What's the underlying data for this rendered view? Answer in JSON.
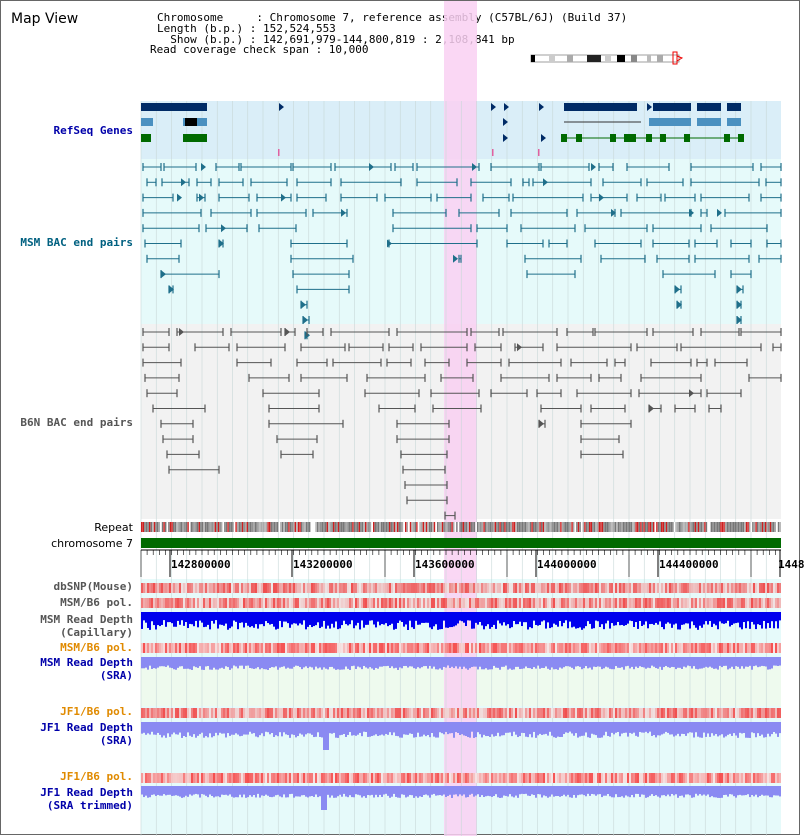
{
  "header": {
    "title": "Map View",
    "chromosome_line": "Chromosome     : Chromosome 7, reference assembly (C57BL/6J) (Build 37)",
    "length_line": "Length (b.p.) : 152,524,553",
    "show_line": "  Show (b.p.) : 142,691,979-144,800,819 : 2,108,841 bp",
    "coverage_line": "Read coverage check span : 10,000"
  },
  "tracks": {
    "refseq": "RefSeq Genes",
    "msm_bac": "MSM BAC end pairs",
    "b6n_bac": "B6N BAC end pairs",
    "repeat": "Repeat",
    "chromosome": "chromosome 7",
    "dbsnp": "dbSNP(Mouse)",
    "msm_b6_pol_1": "MSM/B6 pol.",
    "msm_read_depth_cap_1": "MSM Read Depth",
    "msm_read_depth_cap_2": "(Capillary)",
    "msm_b6_pol_2": "MSM/B6 pol.",
    "msm_read_depth_sra_1": "MSM Read Depth",
    "msm_read_depth_sra_2": "(SRA)",
    "jf1_b6_pol_1": "JF1/B6 pol.",
    "jf1_read_depth_1": "JF1 Read Depth",
    "jf1_read_depth_2": "(SRA)",
    "jf1_b6_pol_2": "JF1/B6 pol.",
    "jf1_read_depth_trim_1": "JF1 Read Depth",
    "jf1_read_depth_trim_2": "(SRA trimmed)"
  },
  "axis": {
    "ticks": [
      "142800000",
      "143200000",
      "143600000",
      "144000000",
      "144400000",
      "1448"
    ]
  },
  "colors": {
    "refseq_bg": "#daeef8",
    "msm_bg": "#e6fafa",
    "b6n_bg": "#f2f2f2",
    "highlight": "#f9d0f2",
    "gene_dark": "#002b66",
    "gene_light": "#4a90c0",
    "gene_green": "#006a00",
    "msm_line": "#1f6f8a",
    "b6n_line": "#555555",
    "chromosome_bar": "#006a00",
    "depth_blue": "#0000ee",
    "depth_light": "#8a8af2",
    "label_blue": "#0000aa",
    "label_teal": "#006080",
    "label_gray": "#555555",
    "label_orange": "#e08a00"
  }
}
